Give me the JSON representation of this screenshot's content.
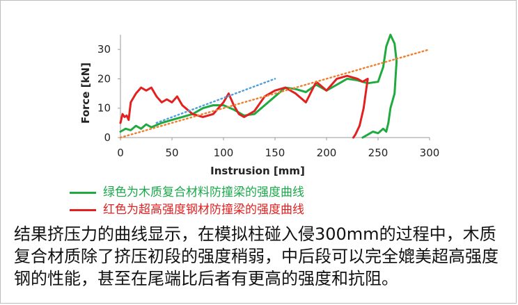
{
  "chart_data": {
    "type": "line",
    "xlabel": "Instrusion [mm]",
    "ylabel": "Force [kN]",
    "xlim": [
      0,
      300
    ],
    "ylim": [
      0,
      35
    ],
    "xticks": [
      "0",
      "50",
      "100",
      "150",
      "200",
      "250",
      "300"
    ],
    "yticks": [
      "0",
      "10",
      "20",
      "30"
    ],
    "grid": false,
    "legend_position": "below",
    "series": [
      {
        "name": "绿色为木质复合材料防撞梁的强度曲线",
        "color": "#1faa3f",
        "x": [
          0,
          5,
          10,
          15,
          20,
          25,
          30,
          40,
          50,
          60,
          70,
          80,
          90,
          100,
          110,
          120,
          130,
          140,
          150,
          160,
          170,
          180,
          190,
          200,
          210,
          220,
          230,
          240,
          250,
          255,
          258,
          262,
          266,
          268,
          266,
          262,
          260,
          258,
          255,
          250,
          245,
          240,
          235
        ],
        "y": [
          2,
          3,
          2.5,
          4,
          3,
          4.5,
          3.5,
          5,
          6,
          7,
          8,
          10,
          11,
          11,
          9.5,
          7.5,
          8,
          11,
          14,
          17,
          16.5,
          15.5,
          18,
          16,
          18,
          20,
          19.5,
          18.5,
          19,
          24,
          31,
          35,
          32,
          26,
          15,
          10,
          5,
          2,
          3,
          1.5,
          2,
          1,
          0
        ]
      },
      {
        "name": "红色为超高强度钢材防撞梁的强度曲线",
        "color": "#e22020",
        "x": [
          0,
          2,
          4,
          6,
          8,
          10,
          15,
          20,
          25,
          30,
          35,
          40,
          45,
          50,
          55,
          60,
          70,
          80,
          90,
          100,
          105,
          110,
          115,
          120,
          130,
          140,
          150,
          160,
          170,
          180,
          190,
          200,
          210,
          220,
          230,
          235,
          240,
          238,
          236,
          232,
          228,
          226
        ],
        "y": [
          5,
          8,
          7,
          7.5,
          6,
          12,
          15,
          17,
          16,
          17,
          14,
          12,
          13,
          12,
          14,
          11,
          8,
          7,
          8,
          12,
          15,
          11,
          8,
          7,
          9,
          14,
          16,
          17,
          15,
          12,
          19,
          16,
          20,
          21,
          20,
          19,
          20,
          15,
          10,
          4,
          1,
          0
        ]
      },
      {
        "name": "",
        "color": "#f08030",
        "style": "dotted",
        "x": [
          0,
          300
        ],
        "y": [
          0,
          30
        ]
      },
      {
        "name": "",
        "color": "#4fa0dc",
        "style": "dotted",
        "x": [
          35,
          150
        ],
        "y": [
          5,
          20
        ]
      }
    ]
  },
  "legend": {
    "green": "绿色为木质复合材料防撞梁的强度曲线",
    "red": "红色为超高强度钢材防撞梁的强度曲线"
  },
  "caption": "结果挤压力的曲线显示，在模拟柱碰入侵300mm的过程中，木质复合材质除了挤压初段的强度稍弱，中后段可以完全媲美超高强度钢的性能，甚至在尾端比后者有更高的强度和抗阻。"
}
